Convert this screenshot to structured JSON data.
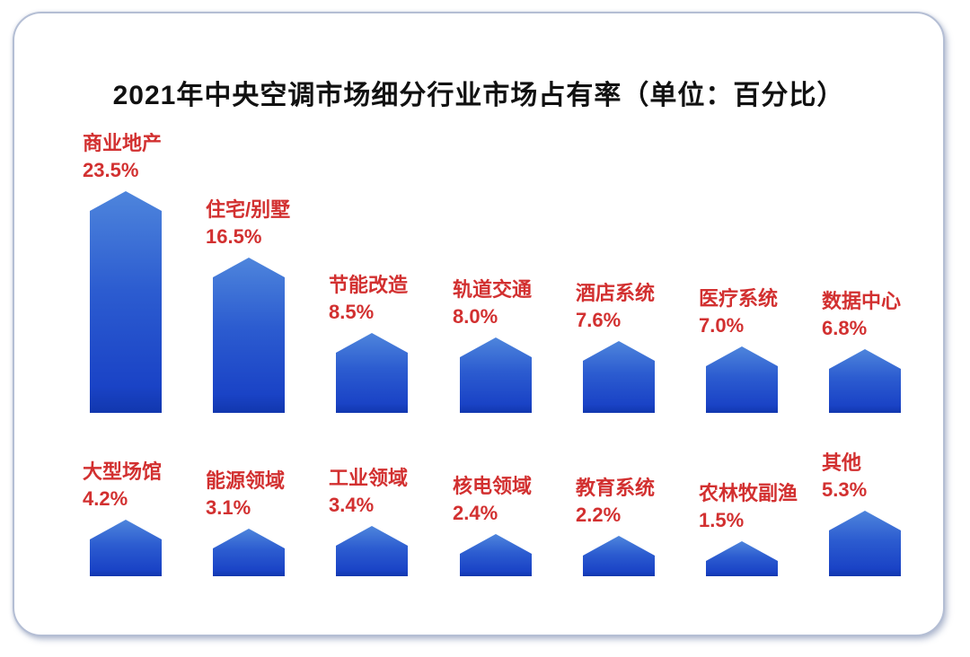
{
  "page": {
    "title_full": "2021年中央空调市场细分行业市场占有率（单位：百分比）"
  },
  "colors": {
    "label_red": "#d23030",
    "title_black": "#111111",
    "bar_gradient_top": "#4e85dc",
    "bar_gradient_mid": "#2c5cd0",
    "bar_gradient_low": "#1a43c6",
    "bar_gradient_bottom": "#1137ae",
    "card_border": "#b4bed4"
  },
  "chart_data": {
    "type": "bar",
    "title": "2021年中央空调市场细分行业市场占有率",
    "unit_note": "单位：百分比",
    "value_suffix": "%",
    "categories": [
      "商业地产",
      "住宅/别墅",
      "节能改造",
      "轨道交通",
      "酒店系统",
      "医疗系统",
      "数据中心",
      "大型场馆",
      "能源领域",
      "工业领域",
      "核电领域",
      "教育系统",
      "农林牧副渔",
      "其他"
    ],
    "values": [
      23.5,
      16.5,
      8.5,
      8.0,
      7.6,
      7.0,
      6.8,
      4.2,
      3.1,
      3.4,
      2.4,
      2.2,
      1.5,
      5.3
    ],
    "display_values": [
      "23.5%",
      "16.5%",
      "8.5%",
      "8.0%",
      "7.6%",
      "7.0%",
      "6.8%",
      "4.2%",
      "3.1%",
      "3.4%",
      "2.4%",
      "2.2%",
      "1.5%",
      "5.3%"
    ],
    "layout": {
      "rows": 2,
      "cols_per_row": 7,
      "bar_shape": "pentagon-peak",
      "grid": false,
      "legend": false,
      "axes_visible": false,
      "label_position": "above-bar"
    }
  }
}
